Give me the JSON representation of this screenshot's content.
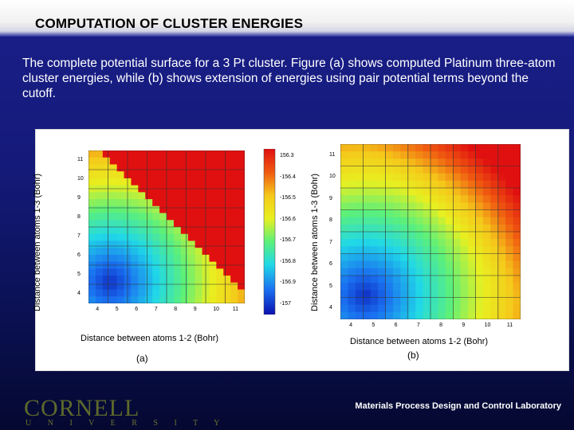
{
  "slide": {
    "title": "COMPUTATION OF CLUSTER ENERGIES",
    "caption": "The complete potential surface for a 3 Pt cluster. Figure (a) shows computed Platinum three-atom cluster energies, while (b) shows extension of energies using pair potential terms beyond the cutoff.",
    "footer_left": "CORNELL",
    "footer_left_sub": "U N I V E R S I T Y",
    "footer_right": "Materials Process Design and Control Laboratory"
  },
  "figures": [
    {
      "label": "(a)",
      "xlabel": "Distance between atoms 1-2 (Bohr)",
      "ylabel": "Distance between atoms 1-3 (Bohr)",
      "xticks": [
        "4",
        "5",
        "6",
        "7",
        "8",
        "9",
        "10",
        "11"
      ],
      "yticks": [
        "11",
        "10",
        "9",
        "8",
        "7",
        "6",
        "5",
        "4"
      ],
      "colorbar_ticks": [
        "156.3",
        "-156.4",
        "-156.5",
        "-156.6",
        "-156.7",
        "-156.8",
        "-156.9",
        "-157"
      ]
    },
    {
      "label": "(b)",
      "xlabel": "Distance between atoms 1-2 (Bohr)",
      "ylabel": "Distance between atoms 1-3 (Bohr)",
      "xticks": [
        "4",
        "5",
        "6",
        "7",
        "8",
        "9",
        "10",
        "11"
      ],
      "yticks": [
        "11",
        "10",
        "9",
        "8",
        "7",
        "6",
        "5",
        "4"
      ]
    }
  ],
  "colors": {
    "background": "#141a78",
    "accent": "#5d6a2b"
  }
}
